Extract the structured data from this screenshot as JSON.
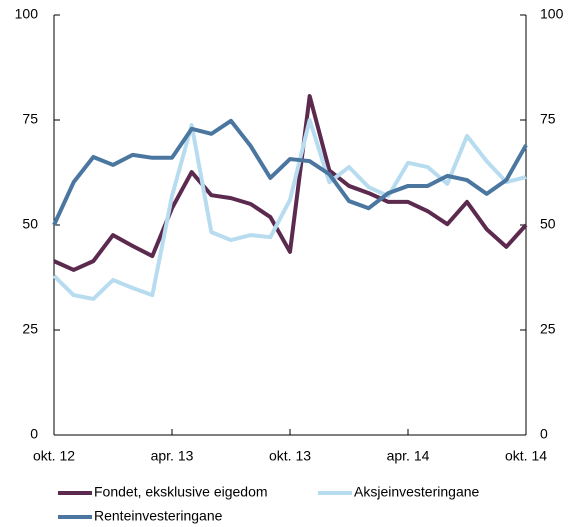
{
  "chart_data": {
    "type": "line",
    "categories": [
      "okt. 12",
      null,
      null,
      null,
      null,
      null,
      "apr. 13",
      null,
      null,
      null,
      null,
      null,
      "okt. 13",
      null,
      null,
      null,
      null,
      null,
      "apr. 14",
      null,
      null,
      null,
      null,
      null,
      "okt. 14"
    ],
    "series": [
      {
        "name": "Fondet, eksklusive eigedom",
        "color": "#5b2a4e",
        "values": [
          41.4,
          39.3,
          41.4,
          47.6,
          45,
          42.6,
          54,
          62.6,
          57.1,
          56.4,
          55,
          51.9,
          43.6,
          80.7,
          63,
          59.3,
          57.6,
          55.5,
          55.5,
          53.3,
          50.2,
          55.5,
          49,
          44.8,
          50
        ]
      },
      {
        "name": "Aksjeinvesteringane",
        "color": "#b8dcef",
        "values": [
          37.9,
          33.3,
          32.4,
          36.9,
          35,
          33.3,
          56.9,
          73.8,
          48.3,
          46.4,
          47.6,
          47.1,
          56,
          75,
          60.2,
          63.8,
          59,
          56.9,
          64.8,
          63.8,
          59.8,
          71.2,
          65.2,
          60.2,
          61.4
        ]
      },
      {
        "name": "Renteinvesteringane",
        "color": "#4a76a0",
        "values": [
          50,
          60.2,
          66.2,
          64.3,
          66.7,
          66,
          66,
          72.9,
          71.7,
          74.8,
          68.8,
          61.2,
          65.7,
          65.2,
          62.1,
          55.7,
          54,
          57.6,
          59.3,
          59.3,
          61.7,
          60.7,
          57.4,
          60.7,
          69
        ]
      }
    ],
    "ylim": [
      0,
      100
    ],
    "yticks": [
      0,
      25,
      50,
      75,
      100
    ],
    "y2lim": [
      0,
      100
    ],
    "y2ticks": [
      0,
      25,
      50,
      75,
      100
    ],
    "grid": false
  }
}
